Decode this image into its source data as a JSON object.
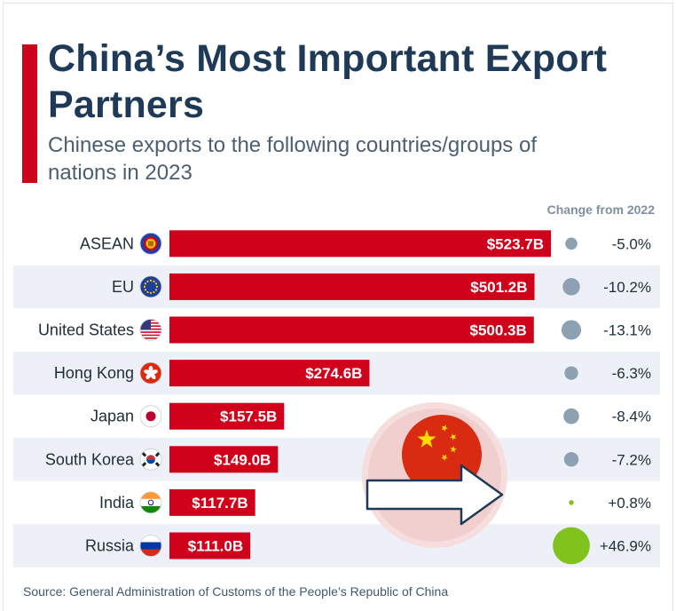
{
  "header": {
    "title": "China’s Most Important Export Partners",
    "subtitle": "Chinese exports to the following countries/groups of nations in 2023",
    "change_column_label": "Change from 2022"
  },
  "footer": {
    "source": "Source: General Administration of Customs of the People’s Republic of China"
  },
  "colors": {
    "bar": "#d0021b",
    "title": "#1f3a56",
    "change_negative": "#8da1b3",
    "change_positive": "#7fc31c",
    "band": "#edf1f7"
  },
  "chart_data": {
    "type": "bar",
    "orientation": "horizontal",
    "categories": [
      "ASEAN",
      "EU",
      "United States",
      "Hong Kong",
      "Japan",
      "South Korea",
      "India",
      "Russia"
    ],
    "flag_icons": [
      "asean-flag-icon",
      "eu-flag-icon",
      "us-flag-icon",
      "hong-kong-flag-icon",
      "japan-flag-icon",
      "south-korea-flag-icon",
      "india-flag-icon",
      "russia-flag-icon"
    ],
    "values": [
      523.7,
      501.2,
      500.3,
      274.6,
      157.5,
      149.0,
      117.7,
      111.0
    ],
    "value_labels": [
      "$523.7B",
      "$501.2B",
      "$500.3B",
      "$274.6B",
      "$157.5B",
      "$149.0B",
      "$117.7B",
      "$111.0B"
    ],
    "change_from_2022": [
      -5.0,
      -10.2,
      -13.1,
      -6.3,
      -8.4,
      -7.2,
      0.8,
      46.9
    ],
    "change_labels": [
      "-5.0%",
      "-10.2%",
      "-13.1%",
      "-6.3%",
      "-8.4%",
      "-7.2%",
      "+0.8%",
      "+46.9%"
    ]
  },
  "decoration": {
    "icon": "china-flag-with-export-arrow-icon"
  }
}
